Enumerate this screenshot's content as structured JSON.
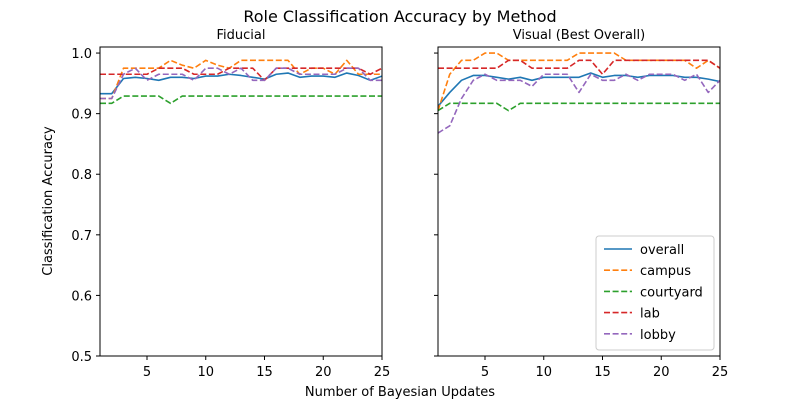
{
  "figure": {
    "title": "Role Classification Accuracy by Method",
    "xlabel": "Number of Bayesian Updates",
    "ylabel": "Classification Accuracy"
  },
  "colors": {
    "overall": "#1f77b4",
    "campus": "#ff7f0e",
    "courtyard": "#2ca02c",
    "lab": "#d62728",
    "lobby": "#9467bd"
  },
  "chart_data": [
    {
      "type": "line",
      "title": "Fiducial",
      "xlim": [
        1,
        25
      ],
      "ylim": [
        0.5,
        1.01
      ],
      "x_ticks": [
        5,
        10,
        15,
        20,
        25
      ],
      "y_ticks": [
        0.5,
        0.6,
        0.7,
        0.8,
        0.9,
        1.0
      ],
      "y_tick_labels": [
        "0.5",
        "0.6",
        "0.7",
        "0.8",
        "0.9",
        "1.0"
      ],
      "x": [
        1,
        2,
        3,
        4,
        5,
        6,
        7,
        8,
        9,
        10,
        11,
        12,
        13,
        14,
        15,
        16,
        17,
        18,
        19,
        20,
        21,
        22,
        23,
        24,
        25
      ],
      "series": [
        {
          "name": "overall",
          "style": "solid",
          "values": [
            0.933,
            0.933,
            0.958,
            0.96,
            0.958,
            0.955,
            0.96,
            0.96,
            0.958,
            0.962,
            0.962,
            0.965,
            0.963,
            0.96,
            0.957,
            0.965,
            0.967,
            0.96,
            0.962,
            0.962,
            0.96,
            0.967,
            0.963,
            0.955,
            0.962
          ]
        },
        {
          "name": "campus",
          "style": "dashed",
          "values": [
            0.925,
            0.925,
            0.975,
            0.975,
            0.975,
            0.975,
            0.988,
            0.98,
            0.975,
            0.988,
            0.98,
            0.975,
            0.988,
            0.988,
            0.988,
            0.988,
            0.988,
            0.965,
            0.975,
            0.975,
            0.965,
            0.988,
            0.965,
            0.965,
            0.965
          ]
        },
        {
          "name": "courtyard",
          "style": "dashed",
          "values": [
            0.917,
            0.917,
            0.929,
            0.929,
            0.929,
            0.929,
            0.917,
            0.929,
            0.929,
            0.929,
            0.929,
            0.929,
            0.929,
            0.929,
            0.929,
            0.929,
            0.929,
            0.929,
            0.929,
            0.929,
            0.929,
            0.929,
            0.929,
            0.929,
            0.929
          ]
        },
        {
          "name": "lab",
          "style": "dashed",
          "values": [
            0.965,
            0.965,
            0.965,
            0.965,
            0.965,
            0.975,
            0.975,
            0.975,
            0.965,
            0.965,
            0.965,
            0.975,
            0.975,
            0.975,
            0.955,
            0.975,
            0.975,
            0.975,
            0.975,
            0.975,
            0.975,
            0.975,
            0.975,
            0.965,
            0.975
          ]
        },
        {
          "name": "lobby",
          "style": "dashed",
          "values": [
            0.925,
            0.925,
            0.965,
            0.975,
            0.955,
            0.965,
            0.965,
            0.965,
            0.955,
            0.975,
            0.975,
            0.965,
            0.975,
            0.955,
            0.955,
            0.975,
            0.975,
            0.965,
            0.965,
            0.965,
            0.965,
            0.975,
            0.975,
            0.955,
            0.955
          ]
        }
      ]
    },
    {
      "type": "line",
      "title": "Visual (Best Overall)",
      "xlim": [
        1,
        25
      ],
      "ylim": [
        0.5,
        1.01
      ],
      "x_ticks": [
        5,
        10,
        15,
        20,
        25
      ],
      "y_ticks": [
        0.5,
        0.6,
        0.7,
        0.8,
        0.9,
        1.0
      ],
      "y_tick_labels": [
        "",
        "",
        "",
        "",
        "",
        ""
      ],
      "legend": "lower-right",
      "x": [
        1,
        2,
        3,
        4,
        5,
        6,
        7,
        8,
        9,
        10,
        11,
        12,
        13,
        14,
        15,
        16,
        17,
        18,
        19,
        20,
        21,
        22,
        23,
        24,
        25
      ],
      "series": [
        {
          "name": "overall",
          "style": "solid",
          "values": [
            0.912,
            0.935,
            0.955,
            0.963,
            0.963,
            0.96,
            0.957,
            0.96,
            0.955,
            0.96,
            0.96,
            0.96,
            0.96,
            0.967,
            0.96,
            0.963,
            0.963,
            0.96,
            0.963,
            0.963,
            0.963,
            0.96,
            0.96,
            0.957,
            0.953
          ]
        },
        {
          "name": "campus",
          "style": "dashed",
          "values": [
            0.905,
            0.965,
            0.988,
            0.988,
            1.0,
            1.0,
            0.988,
            0.988,
            0.988,
            0.988,
            0.988,
            0.988,
            1.0,
            1.0,
            1.0,
            1.0,
            0.988,
            0.988,
            0.988,
            0.988,
            0.988,
            0.988,
            0.975,
            0.988,
            0.975
          ]
        },
        {
          "name": "courtyard",
          "style": "dashed",
          "values": [
            0.905,
            0.917,
            0.917,
            0.917,
            0.917,
            0.917,
            0.905,
            0.917,
            0.917,
            0.917,
            0.917,
            0.917,
            0.917,
            0.917,
            0.917,
            0.917,
            0.917,
            0.917,
            0.917,
            0.917,
            0.917,
            0.917,
            0.917,
            0.917,
            0.917
          ]
        },
        {
          "name": "lab",
          "style": "dashed",
          "values": [
            0.975,
            0.975,
            0.975,
            0.975,
            0.975,
            0.975,
            0.988,
            0.988,
            0.975,
            0.975,
            0.975,
            0.975,
            0.988,
            0.988,
            0.965,
            0.988,
            0.988,
            0.988,
            0.988,
            0.988,
            0.988,
            0.988,
            0.988,
            0.988,
            0.975
          ]
        },
        {
          "name": "lobby",
          "style": "dashed",
          "values": [
            0.868,
            0.88,
            0.925,
            0.955,
            0.965,
            0.955,
            0.955,
            0.955,
            0.945,
            0.965,
            0.965,
            0.965,
            0.935,
            0.965,
            0.955,
            0.955,
            0.965,
            0.955,
            0.965,
            0.965,
            0.965,
            0.955,
            0.965,
            0.935,
            0.955
          ]
        }
      ]
    }
  ]
}
